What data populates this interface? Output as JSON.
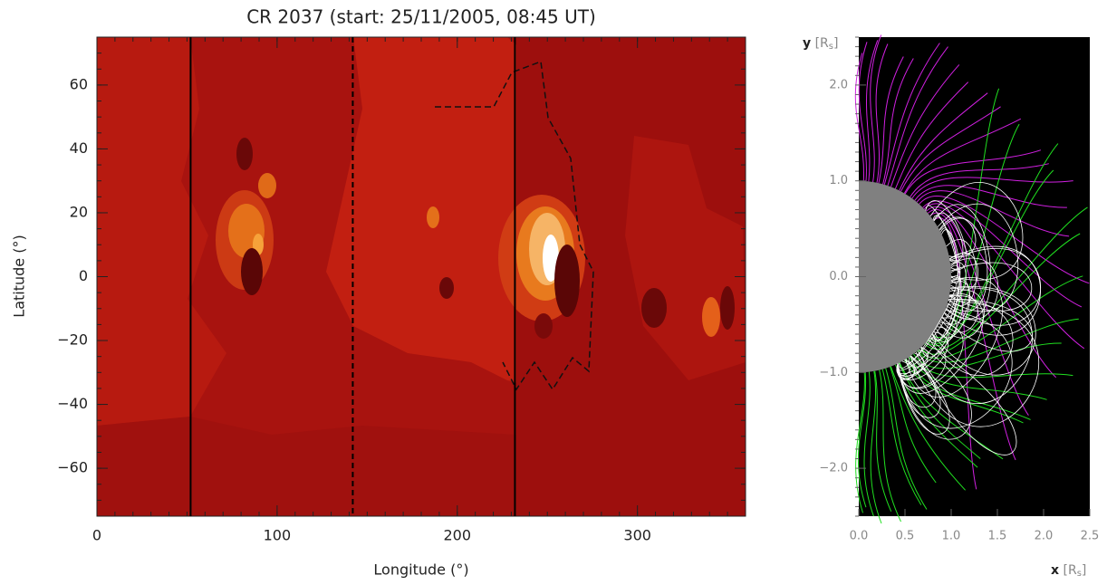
{
  "chart_data": [
    {
      "type": "contour",
      "title": "CR 2037 (start: 25/11/2005, 08:45 UT)",
      "xlabel": "Longitude (°)",
      "ylabel": "Latitude (°)",
      "xlim": [
        0,
        360
      ],
      "ylim": [
        -75,
        75
      ],
      "xticks": [
        0,
        100,
        200,
        300
      ],
      "yticks": [
        {
          "value": -60,
          "label": "−60"
        },
        {
          "value": -40,
          "label": "−40"
        },
        {
          "value": -20,
          "label": "−20"
        },
        0,
        20,
        40,
        60
      ],
      "vlines": [
        {
          "x": 52,
          "style": "solid"
        },
        {
          "x": 142,
          "style": "dashed"
        },
        {
          "x": 232,
          "style": "solid"
        }
      ],
      "color": "#000000"
    },
    {
      "type": "field-lines",
      "xlabel": [
        "x",
        "[R",
        "s",
        "]"
      ],
      "ylabel": [
        "y",
        "[R",
        "s",
        "]"
      ],
      "xlim": [
        0,
        2.5
      ],
      "ylim": [
        -2.5,
        2.5
      ],
      "xticks": [
        {
          "value": 0,
          "label": "0.0"
        },
        {
          "value": 0.5,
          "label": "0.5"
        },
        {
          "value": 1,
          "label": "1.0"
        },
        {
          "value": 1.5,
          "label": "1.5"
        },
        {
          "value": 2,
          "label": "2.0"
        },
        {
          "value": 2.5,
          "label": "2.5"
        }
      ],
      "yticks": [
        {
          "value": -2,
          "label": "−2.0"
        },
        {
          "value": -1,
          "label": "−1.0"
        },
        {
          "value": 0,
          "label": "0.0"
        },
        {
          "value": 1,
          "label": "1.0"
        },
        {
          "value": 2,
          "label": "2.0"
        }
      ],
      "colors": {
        "north": "#d020e0",
        "south": "#20e020",
        "closed": "#ffffff"
      }
    }
  ]
}
